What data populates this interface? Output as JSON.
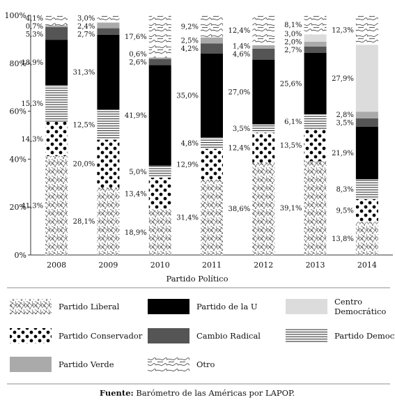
{
  "chart_data": {
    "type": "bar",
    "stacked": true,
    "xlabel": "Partido Político",
    "ylabel": "",
    "ylim": [
      0,
      100
    ],
    "yticks": [
      "0%",
      "20%",
      "40%",
      "60%",
      "80%",
      "100%"
    ],
    "categories": [
      "2008",
      "2009",
      "2010",
      "2011",
      "2012",
      "2013",
      "2014"
    ],
    "series": [
      {
        "name": "Partido Liberal",
        "key": "liberal",
        "values": [
          41.3,
          28.1,
          18.9,
          31.4,
          38.6,
          39.1,
          13.8
        ],
        "labels": [
          "41,3%",
          "28,1%",
          "18,9%",
          "31,4%",
          "38,6%",
          "39,1%",
          "13,8%"
        ]
      },
      {
        "name": "Partido Conservador",
        "key": "conservador",
        "values": [
          14.3,
          20.0,
          13.4,
          12.9,
          12.4,
          13.5,
          9.5
        ],
        "labels": [
          "14,3%",
          "20,0%",
          "13,4%",
          "12,9%",
          "12,4%",
          "13,5%",
          "9,5%"
        ]
      },
      {
        "name": "Partido Democrático",
        "key": "democratico",
        "values": [
          15.3,
          12.5,
          5.0,
          4.8,
          3.5,
          6.1,
          8.3
        ],
        "labels": [
          "15,3%",
          "12,5%",
          "5,0%",
          "4,8%",
          "3,5%",
          "6,1%",
          "8,3%"
        ]
      },
      {
        "name": "Partido de la U",
        "key": "u",
        "values": [
          18.9,
          31.3,
          41.9,
          35.0,
          27.0,
          25.6,
          21.9
        ],
        "labels": [
          "18,9%",
          "31,3%",
          "41,9%",
          "35,0%",
          "27,0%",
          "25,6%",
          "21,9%"
        ]
      },
      {
        "name": "Cambio Radical",
        "key": "cambio",
        "values": [
          5.3,
          2.7,
          2.6,
          4.2,
          4.6,
          2.7,
          3.5
        ],
        "labels": [
          "5,3%",
          "2,7%",
          "2,6%",
          "4,2%",
          "4,6%",
          "2,7%",
          "3,5%"
        ]
      },
      {
        "name": "Partido Verde",
        "key": "verde",
        "values": [
          0.7,
          2.4,
          0.6,
          2.5,
          1.4,
          2.0,
          2.8
        ],
        "labels": [
          "0,7%",
          "2,4%",
          "0,6%",
          "2,5%",
          "1,4%",
          "2,0%",
          "2,8%"
        ]
      },
      {
        "name": "Centro Democrático",
        "key": "centro",
        "values": [
          0,
          0,
          0,
          0,
          0,
          3.0,
          27.9
        ],
        "labels": [
          "",
          "",
          "",
          "",
          "",
          "3,0%",
          "27,9%"
        ]
      },
      {
        "name": "Otro",
        "key": "otro",
        "values": [
          4.1,
          3.0,
          17.6,
          9.2,
          12.4,
          8.1,
          12.3
        ],
        "labels": [
          "4,1%",
          "3,0%",
          "17,6%",
          "9,2%",
          "12,4%",
          "8,1%",
          "12,3%"
        ]
      }
    ],
    "legend": {
      "placement": "bottom",
      "entries": [
        {
          "key": "liberal",
          "label": "Partido Liberal"
        },
        {
          "key": "u",
          "label": "Partido de la U"
        },
        {
          "key": "centro",
          "label": "Centro Democrático",
          "lines": [
            "Centro",
            "Democrático"
          ]
        },
        {
          "key": "conservador",
          "label": "Partido Conservador"
        },
        {
          "key": "cambio",
          "label": "Cambio Radical"
        },
        {
          "key": "democratico",
          "label": "Partido Democrático"
        },
        {
          "key": "verde",
          "label": "Partido Verde"
        },
        {
          "key": "otro",
          "label": "Otro"
        }
      ]
    },
    "source": {
      "bold": "Fuente:",
      "text": " Barómetro de las Américas por LAPOP."
    },
    "colors": {
      "u": "#000000",
      "cambio": "#555555",
      "verde": "#aaaaaa",
      "centro": "#dcdcdc"
    },
    "grid": false
  }
}
